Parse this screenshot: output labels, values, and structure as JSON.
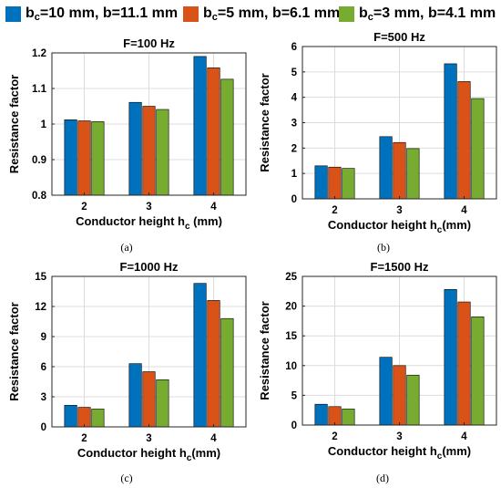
{
  "legend": {
    "items": [
      {
        "label_main": "b",
        "label_sub": "c",
        "label_rest": "=10 mm, b=11.1 mm",
        "color": "#0072BD"
      },
      {
        "label_main": "b",
        "label_sub": "c",
        "label_rest": "=5 mm, b=6.1 mm",
        "color": "#D95319"
      },
      {
        "label_main": "b",
        "label_sub": "c",
        "label_rest": "=3 mm, b=4.1 mm",
        "color": "#77AC30"
      }
    ]
  },
  "captions": [
    "(a)",
    "(b)",
    "(c)",
    "(d)"
  ],
  "chart_data": [
    {
      "type": "bar",
      "title": "F=100 Hz",
      "categories": [
        "2",
        "3",
        "4"
      ],
      "xlabel_main": "Conductor height h",
      "xlabel_sub": "c",
      "xlabel_rest": " (mm)",
      "ylabel": "Resistance factor",
      "ylim": [
        0.8,
        1.2
      ],
      "yticks": [
        0.8,
        0.9,
        1,
        1.1,
        1.2
      ],
      "ytick_labels": [
        "0.8",
        "0.9",
        "1",
        "1.1",
        "1.2"
      ],
      "grid": true,
      "series": [
        {
          "name": "bc=10 mm, b=11.1 mm",
          "values": [
            1.012,
            1.061,
            1.19
          ]
        },
        {
          "name": "bc=5 mm, b=6.1 mm",
          "values": [
            1.009,
            1.05,
            1.158
          ]
        },
        {
          "name": "bc=3 mm, b=4.1 mm",
          "values": [
            1.007,
            1.041,
            1.126
          ]
        }
      ]
    },
    {
      "type": "bar",
      "title": "F=500 Hz",
      "categories": [
        "2",
        "3",
        "4"
      ],
      "xlabel_main": "Conductor height h",
      "xlabel_sub": "c",
      "xlabel_rest": "(mm)",
      "ylabel": "Resistance factor",
      "ylim": [
        0,
        6
      ],
      "yticks": [
        0,
        1,
        2,
        3,
        4,
        5,
        6
      ],
      "ytick_labels": [
        "0",
        "1",
        "2",
        "3",
        "4",
        "5",
        "6"
      ],
      "grid": true,
      "series": [
        {
          "name": "bc=10 mm, b=11.1 mm",
          "values": [
            1.3,
            2.45,
            5.32
          ]
        },
        {
          "name": "bc=5 mm, b=6.1 mm",
          "values": [
            1.25,
            2.22,
            4.62
          ]
        },
        {
          "name": "bc=3 mm, b=4.1 mm",
          "values": [
            1.2,
            1.98,
            3.95
          ]
        }
      ]
    },
    {
      "type": "bar",
      "title": "F=1000 Hz",
      "categories": [
        "2",
        "3",
        "4"
      ],
      "xlabel_main": "Conductor height h",
      "xlabel_sub": "c",
      "xlabel_rest": "(mm)",
      "ylabel": "Resistance factor",
      "ylim": [
        0,
        15
      ],
      "yticks": [
        0,
        3,
        6,
        9,
        12,
        15
      ],
      "ytick_labels": [
        "0",
        "3",
        "6",
        "9",
        "12",
        "15"
      ],
      "grid": true,
      "series": [
        {
          "name": "bc=10 mm, b=11.1 mm",
          "values": [
            2.15,
            6.3,
            14.3
          ]
        },
        {
          "name": "bc=5 mm, b=6.1 mm",
          "values": [
            1.95,
            5.5,
            12.6
          ]
        },
        {
          "name": "bc=3 mm, b=4.1 mm",
          "values": [
            1.78,
            4.7,
            10.8
          ]
        }
      ]
    },
    {
      "type": "bar",
      "title": "F=1500 Hz",
      "categories": [
        "2",
        "3",
        "4"
      ],
      "xlabel_main": "Conductor height h",
      "xlabel_sub": "c",
      "xlabel_rest": "(mm)",
      "ylabel": "Resistance factor",
      "ylim": [
        0,
        25
      ],
      "yticks": [
        0,
        5,
        10,
        15,
        20,
        25
      ],
      "ytick_labels": [
        "0",
        "5",
        "10",
        "15",
        "20",
        "25"
      ],
      "grid": true,
      "series": [
        {
          "name": "bc=10 mm, b=11.1 mm",
          "values": [
            3.5,
            11.4,
            22.8
          ]
        },
        {
          "name": "bc=5 mm, b=6.1 mm",
          "values": [
            3.1,
            10.0,
            20.7
          ]
        },
        {
          "name": "bc=3 mm, b=4.1 mm",
          "values": [
            2.7,
            8.4,
            18.2
          ]
        }
      ]
    }
  ]
}
